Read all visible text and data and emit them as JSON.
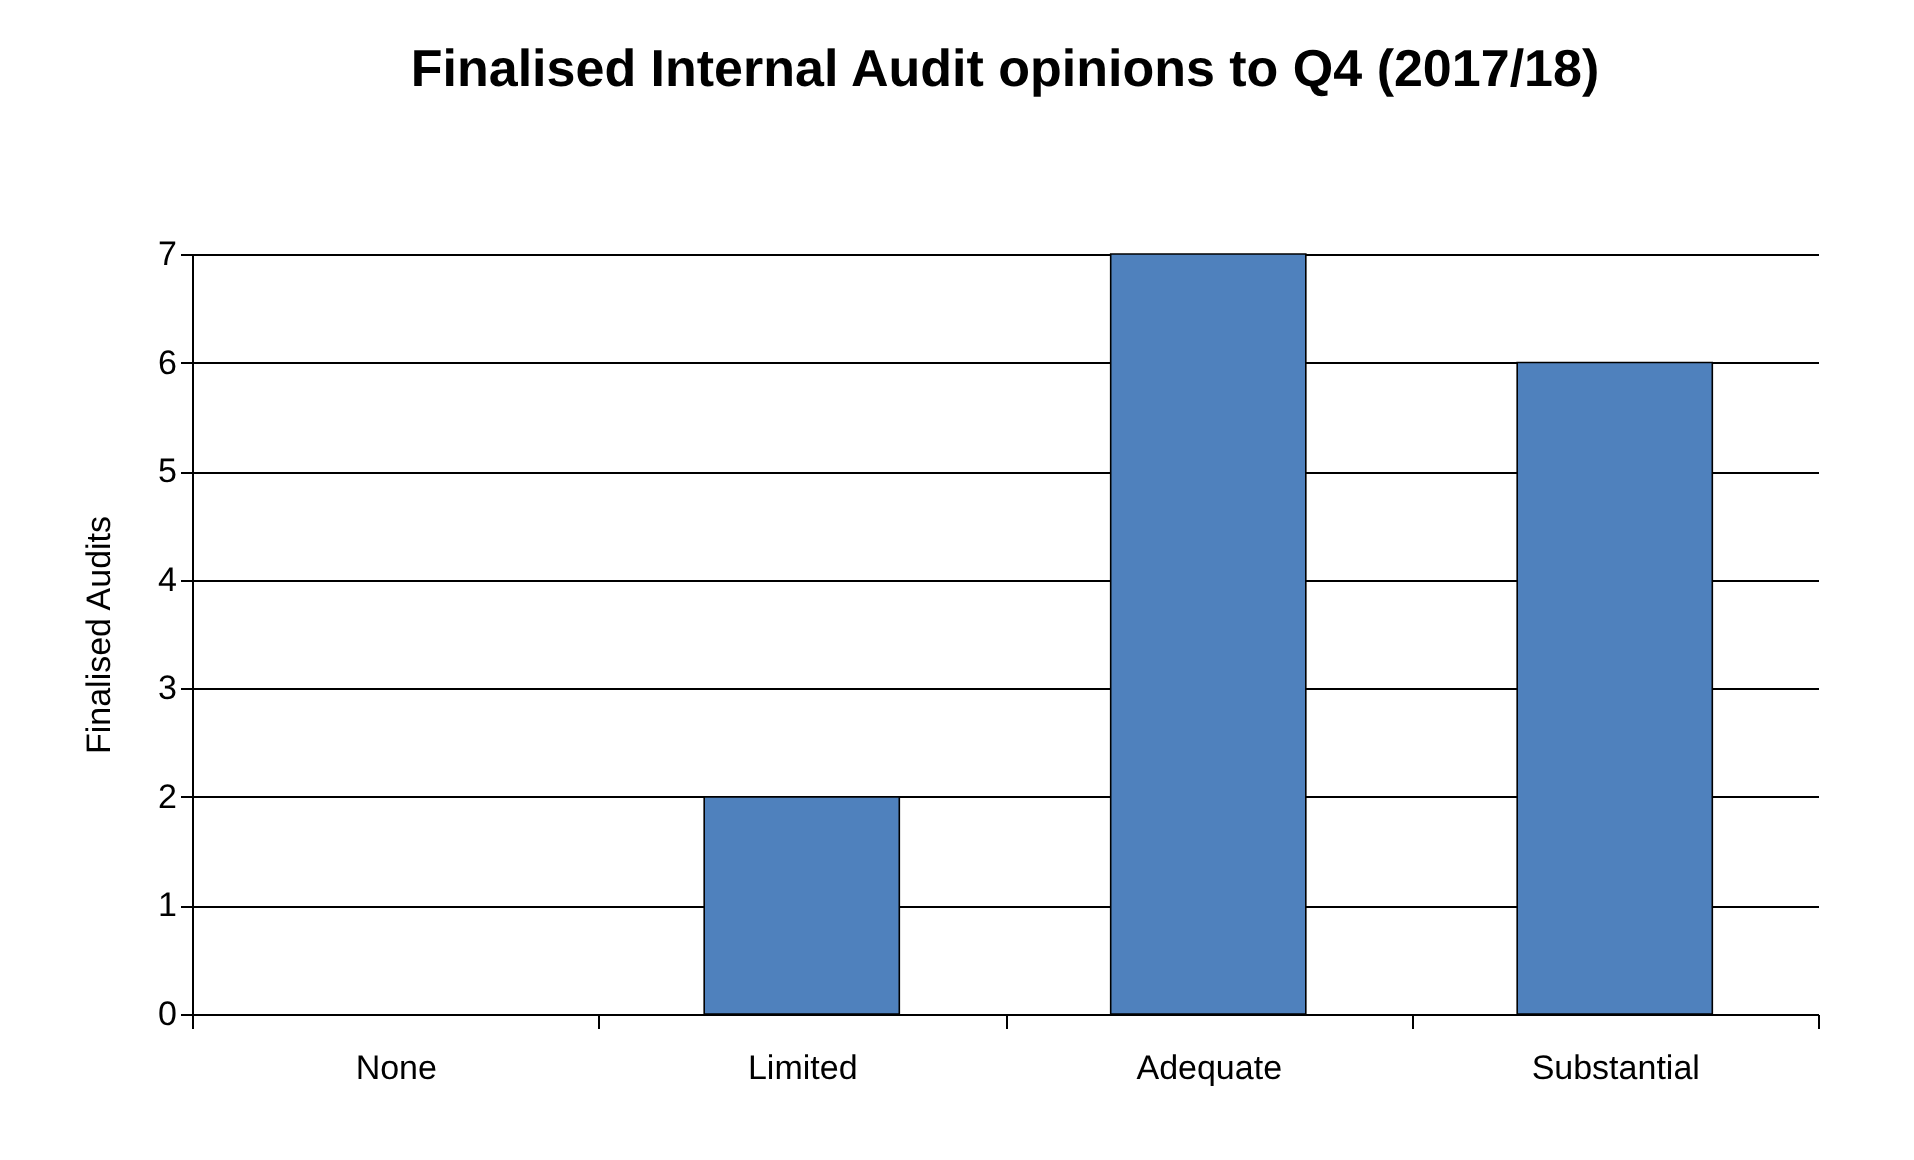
{
  "chart_data": {
    "type": "bar",
    "title": "Finalised Internal Audit opinions to Q4 (2017/18)",
    "ylabel": "Finalised Audits",
    "categories": [
      "None",
      "Limited",
      "Adequate",
      "Substantial"
    ],
    "values": [
      0,
      2,
      7,
      6
    ],
    "color": "#4f81bd",
    "ylim": [
      0,
      7
    ],
    "yticks": [
      0,
      1,
      2,
      3,
      4,
      5,
      6,
      7
    ],
    "grid": "y"
  }
}
